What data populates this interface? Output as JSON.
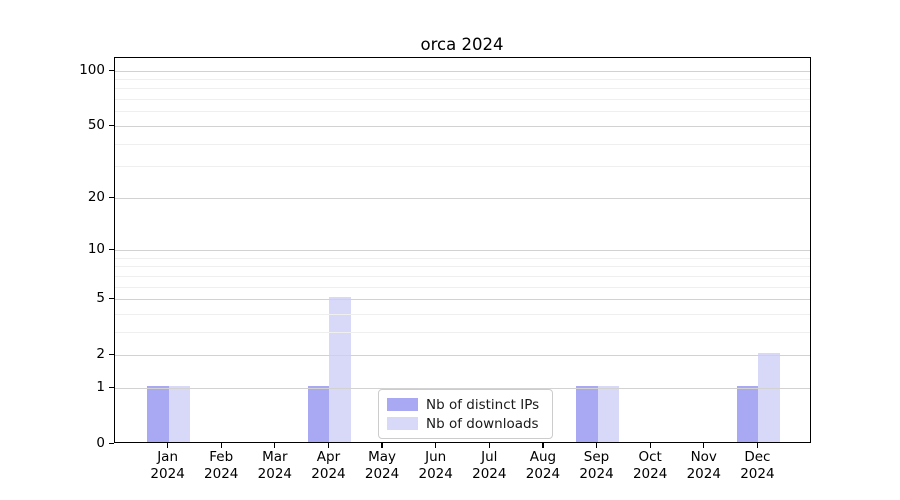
{
  "chart_data": {
    "type": "bar",
    "title": "orca 2024",
    "categories": [
      "Jan",
      "Feb",
      "Mar",
      "Apr",
      "May",
      "Jun",
      "Jul",
      "Aug",
      "Sep",
      "Oct",
      "Nov",
      "Dec"
    ],
    "category_year": "2024",
    "series": [
      {
        "name": "Nb of distinct IPs",
        "color": "#a9a9f3",
        "values": [
          1,
          0,
          0,
          1,
          0,
          0,
          0,
          0,
          1,
          0,
          0,
          1
        ]
      },
      {
        "name": "Nb of downloads",
        "color": "#d8d8f8",
        "values": [
          1,
          0,
          0,
          5,
          0,
          0,
          0,
          0,
          1,
          0,
          0,
          2
        ]
      }
    ],
    "xlabel": "",
    "ylabel": "",
    "yscale": "log10(1+v)",
    "ylim": [
      0,
      117
    ],
    "ymajor_ticks": [
      0,
      1,
      2,
      5,
      10,
      20,
      50,
      100
    ],
    "yminor_ticks": [
      3,
      4,
      6,
      7,
      8,
      9,
      30,
      40,
      60,
      70,
      80,
      90
    ],
    "grid": true,
    "legend_position": "lower center"
  },
  "colors": {
    "background": "#ffffff",
    "axis": "#000000",
    "grid_major": "#d2d2d2",
    "grid_minor": "#efefef",
    "text": "#000000",
    "legend_border": "#cccccc"
  }
}
